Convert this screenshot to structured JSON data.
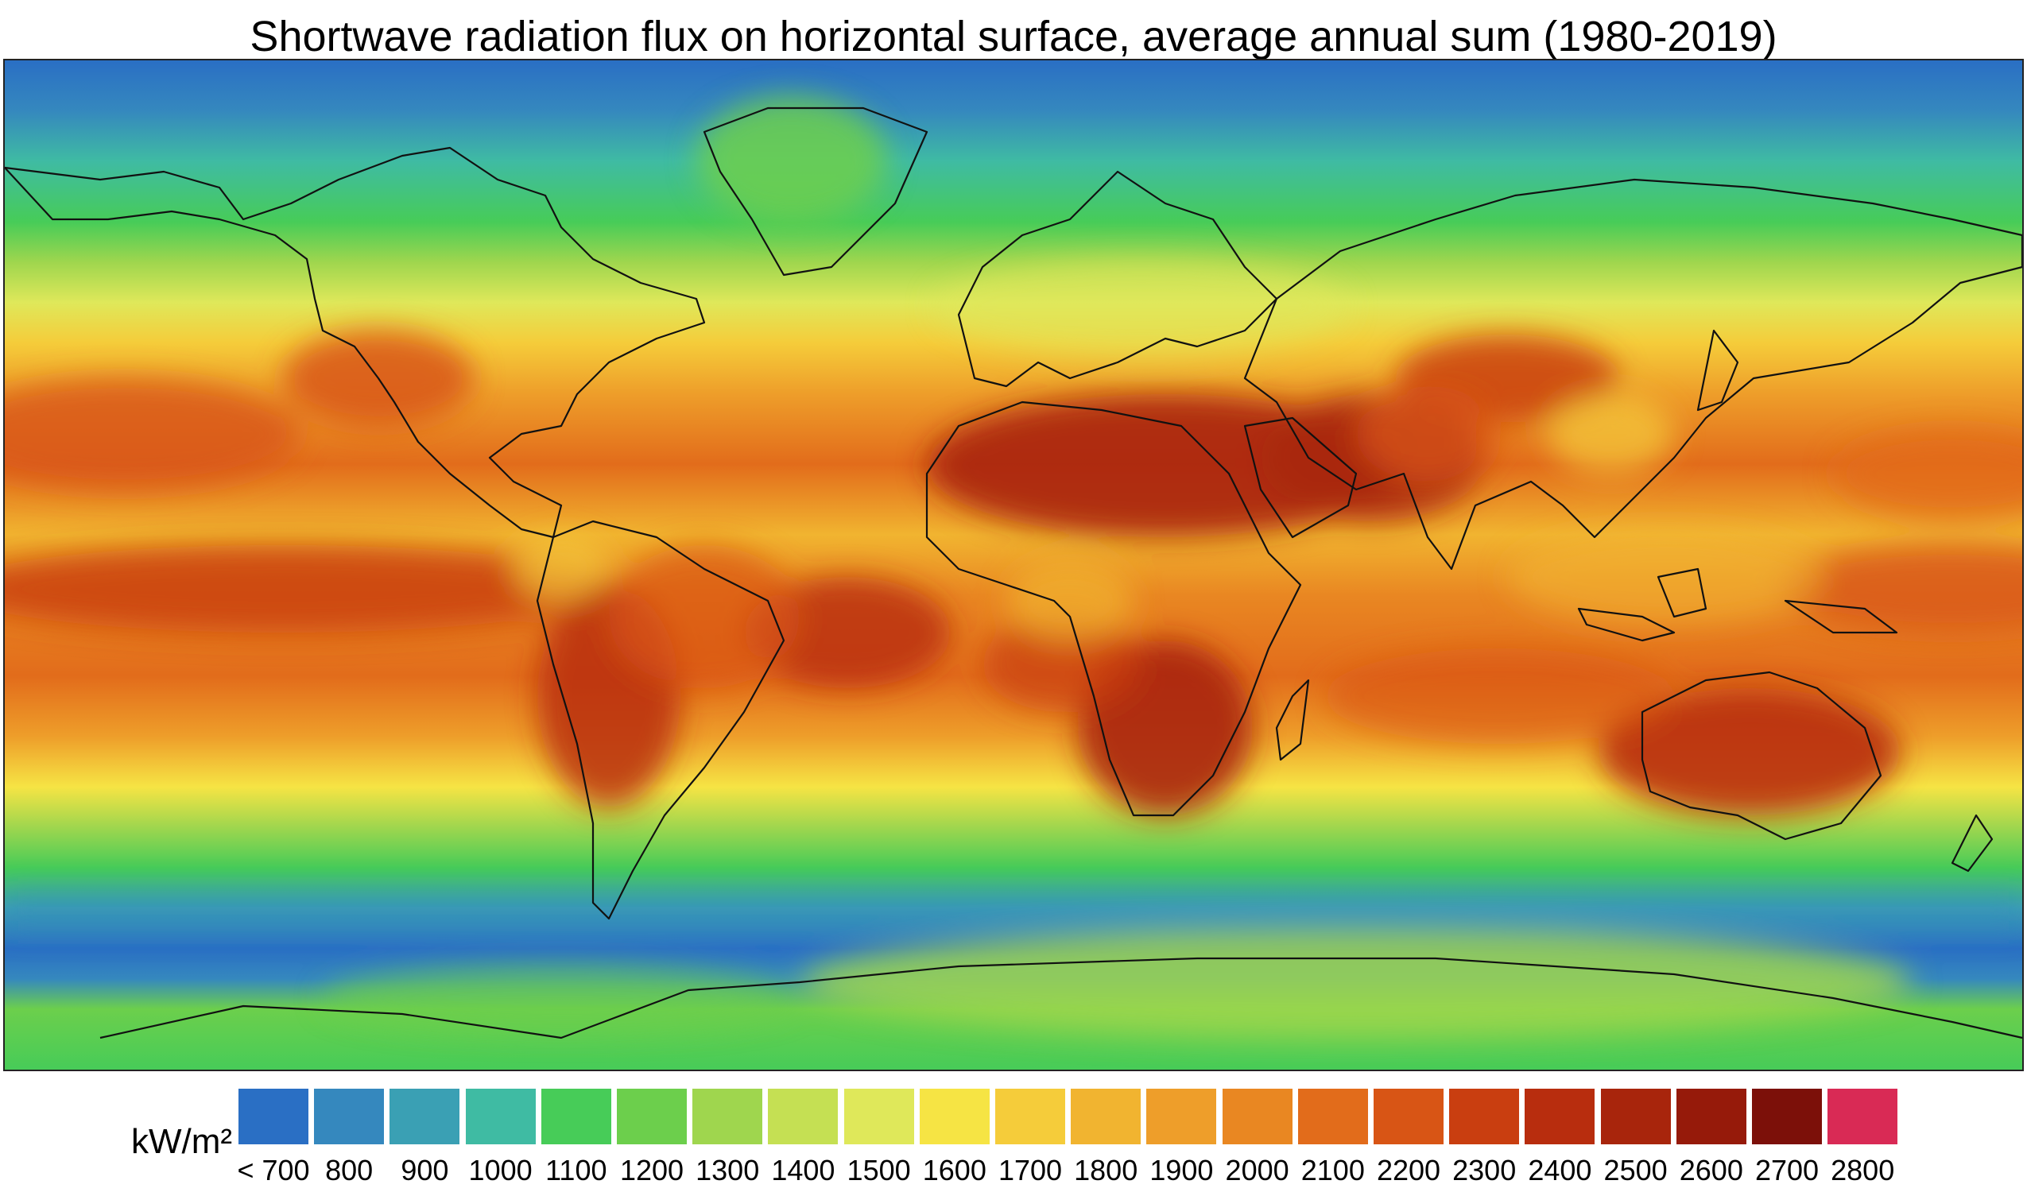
{
  "title": "Shortwave radiation flux on horizontal surface, average annual sum (1980-2019)",
  "legend": {
    "unit": "kW/m²",
    "classes": [
      {
        "label": "< 700",
        "color": "#2a6fc4"
      },
      {
        "label": "800",
        "color": "#3588be"
      },
      {
        "label": "900",
        "color": "#3aa0b4"
      },
      {
        "label": "1000",
        "color": "#3fbba3"
      },
      {
        "label": "1100",
        "color": "#47cc58"
      },
      {
        "label": "1200",
        "color": "#6ccf4c"
      },
      {
        "label": "1300",
        "color": "#9fd64e"
      },
      {
        "label": "1400",
        "color": "#c5e053"
      },
      {
        "label": "1500",
        "color": "#dfe85a"
      },
      {
        "label": "1600",
        "color": "#f6e444"
      },
      {
        "label": "1700",
        "color": "#f5cc3a"
      },
      {
        "label": "1800",
        "color": "#f1b430"
      },
      {
        "label": "1900",
        "color": "#ee9e2a"
      },
      {
        "label": "2000",
        "color": "#e98722"
      },
      {
        "label": "2100",
        "color": "#e26c1b"
      },
      {
        "label": "2200",
        "color": "#d85515"
      },
      {
        "label": "2300",
        "color": "#c93e10"
      },
      {
        "label": "2400",
        "color": "#b82d0e"
      },
      {
        "label": "2500",
        "color": "#a8250c"
      },
      {
        "label": "2600",
        "color": "#961a0a"
      },
      {
        "label": "2700",
        "color": "#7c1009"
      },
      {
        "label": "2800",
        "color": "#d92a55"
      }
    ]
  }
}
